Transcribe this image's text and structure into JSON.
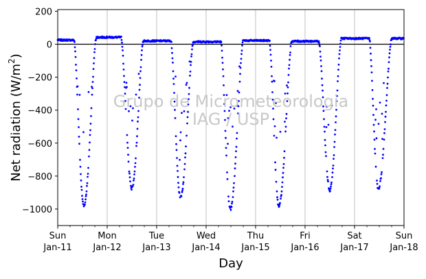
{
  "chart_data": {
    "type": "scatter",
    "title": "",
    "ylabel_main": "Net radiation (W/m",
    "ylabel_sup": "2",
    "ylabel_close": ")",
    "xlabel": "Day",
    "ylim": [
      -1100,
      210
    ],
    "xlim": [
      0,
      7
    ],
    "yticks": [
      {
        "value": 200,
        "label": "200"
      },
      {
        "value": 0,
        "label": "0"
      },
      {
        "value": -200,
        "label": "−200"
      },
      {
        "value": -400,
        "label": "−400"
      },
      {
        "value": -600,
        "label": "−600"
      },
      {
        "value": -800,
        "label": "−800"
      },
      {
        "value": -1000,
        "label": "−1000"
      }
    ],
    "xticks": [
      {
        "value": 0,
        "day": "Sun",
        "date": "Jan-11"
      },
      {
        "value": 1,
        "day": "Mon",
        "date": "Jan-12"
      },
      {
        "value": 2,
        "day": "Tue",
        "date": "Jan-13"
      },
      {
        "value": 3,
        "day": "Wed",
        "date": "Jan-14"
      },
      {
        "value": 4,
        "day": "Thu",
        "date": "Jan-15"
      },
      {
        "value": 5,
        "day": "Fri",
        "date": "Jan-16"
      },
      {
        "value": 6,
        "day": "Sat",
        "date": "Jan-17"
      },
      {
        "value": 7,
        "day": "Sun",
        "date": "Jan-18"
      }
    ],
    "grid": "vertical",
    "zero_line": true,
    "watermark": [
      "Grupo de Micrometeorologia",
      "IAG / USP"
    ],
    "colors": {
      "points": "#0000ff",
      "grid": "#b0b0b0",
      "watermark": "#c8c8c8"
    },
    "series": [
      {
        "daily_profile": [
          {
            "day": "Jan-11",
            "night_mean": 25,
            "trough": -980,
            "trough_time": 0.53,
            "pre_dawn": 0.33
          },
          {
            "day": "Jan-12",
            "night_mean": 42,
            "trough": -875,
            "trough_time": 1.5,
            "pre_dawn": 1.28
          },
          {
            "day": "Jan-13",
            "night_mean": 20,
            "trough": -930,
            "trough_time": 2.48,
            "pre_dawn": 2.29
          },
          {
            "day": "Jan-14",
            "night_mean": 15,
            "trough": -1000,
            "trough_time": 3.49,
            "pre_dawn": 3.3
          },
          {
            "day": "Jan-15",
            "night_mean": 22,
            "trough": -985,
            "trough_time": 4.47,
            "pre_dawn": 4.28
          },
          {
            "day": "Jan-16",
            "night_mean": 18,
            "trough": -885,
            "trough_time": 5.5,
            "pre_dawn": 5.28
          },
          {
            "day": "Jan-17",
            "night_mean": 35,
            "trough": -880,
            "trough_time": 6.48,
            "pre_dawn": 6.3
          }
        ]
      }
    ]
  }
}
